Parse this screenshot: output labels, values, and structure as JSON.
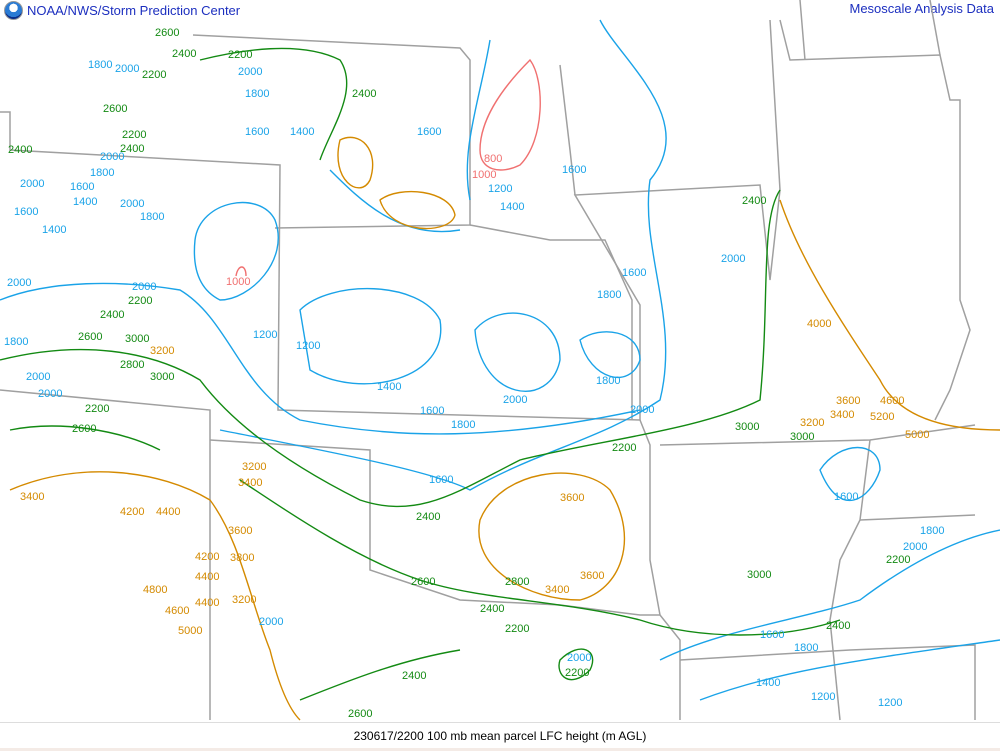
{
  "header": {
    "org": "NOAA/NWS/Storm Prediction Center",
    "product": "Mesoscale Analysis Data"
  },
  "footer": {
    "caption": "230617/2200 100 mb mean parcel LFC height (m AGL)"
  },
  "colors": {
    "low_red": "#f07070",
    "blue": "#1aa3e8",
    "green": "#138a13",
    "orange": "#d48a00",
    "border": "#a0a0a0",
    "title_blue": "#1c2fbf"
  },
  "contour_labels": [
    "2600",
    "2400",
    "2200",
    "1800",
    "2000",
    "2200",
    "2000",
    "1800",
    "1600",
    "1400",
    "2400",
    "2600",
    "2200",
    "2400",
    "2400",
    "2000",
    "1800",
    "1600",
    "1400",
    "1600",
    "2000",
    "1800",
    "2000",
    "1400",
    "1600",
    "1000",
    "800",
    "1000",
    "1200",
    "1400",
    "1600",
    "1600",
    "2400",
    "2000",
    "1800",
    "2000",
    "2000",
    "1200",
    "1200",
    "2200",
    "2400",
    "2600",
    "3000",
    "3200",
    "2800",
    "3000",
    "1800",
    "2000",
    "2000",
    "2200",
    "2600",
    "1400",
    "1600",
    "1800",
    "1600",
    "2000",
    "1800",
    "2000",
    "2200",
    "3000",
    "2400",
    "3200",
    "3400",
    "3600",
    "4200",
    "4400",
    "3600",
    "3800",
    "4800",
    "4600",
    "5000",
    "4400",
    "3400",
    "3600",
    "3400",
    "3200",
    "2800",
    "2600",
    "2200",
    "2400",
    "2000",
    "2200",
    "2000",
    "2400",
    "2600",
    "4400",
    "4200",
    "3000",
    "3200",
    "3400",
    "3600",
    "4600",
    "5000",
    "5200",
    "4000",
    "1600",
    "1800",
    "2000",
    "2200",
    "3000",
    "2400",
    "1800",
    "1600",
    "1400",
    "1200",
    "1200"
  ]
}
